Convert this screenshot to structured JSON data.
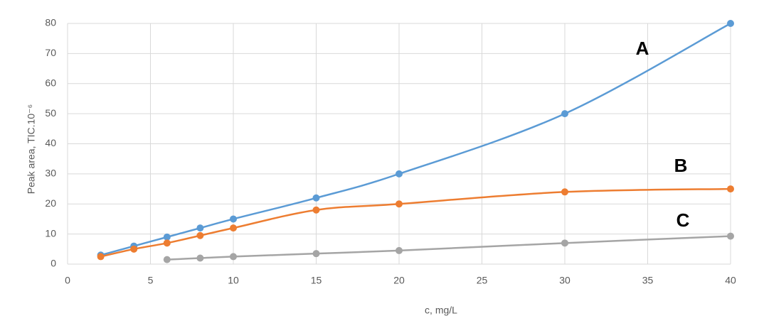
{
  "chart_data": {
    "type": "line",
    "x": [
      2,
      4,
      6,
      8,
      10,
      15,
      20,
      30,
      40
    ],
    "series": [
      {
        "name": "A",
        "color": "#5b9bd5",
        "values": [
          3,
          6,
          9,
          12,
          15,
          22,
          30,
          50,
          80
        ]
      },
      {
        "name": "B",
        "color": "#ed7d31",
        "values": [
          2.5,
          5,
          7,
          9.5,
          12,
          18,
          20,
          24,
          25
        ]
      },
      {
        "name": "C",
        "color": "#a5a5a5",
        "values": [
          null,
          null,
          1.5,
          2,
          2.5,
          3.5,
          4.5,
          7,
          9.3
        ]
      }
    ],
    "xlabel": "c, mg/L",
    "ylabel": "Peak area, TIC.10⁻⁶",
    "xlim": [
      0,
      40
    ],
    "xticks": [
      0,
      5,
      10,
      15,
      20,
      25,
      30,
      35,
      40
    ],
    "ylim": [
      0,
      80
    ],
    "yticks": [
      0,
      10,
      20,
      30,
      40,
      50,
      60,
      70,
      80
    ],
    "grid": true,
    "smooth": true
  }
}
